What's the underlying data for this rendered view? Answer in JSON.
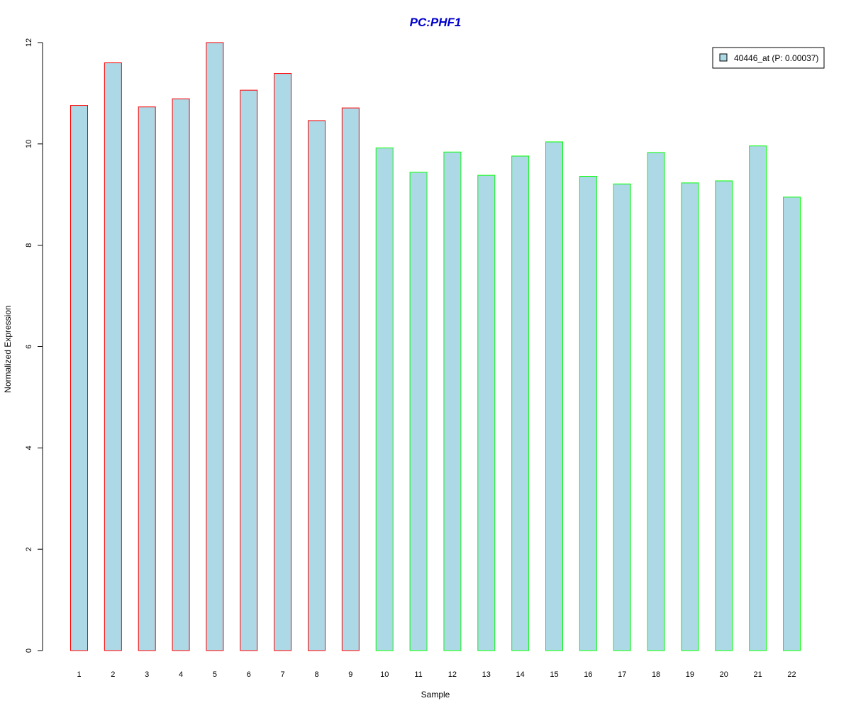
{
  "chart_data": {
    "type": "bar",
    "title": "PC:PHF1",
    "xlabel": "Sample",
    "ylabel": "Normalized Expression",
    "ylim": [
      0,
      12
    ],
    "yticks": [
      "0",
      "2",
      "4",
      "6",
      "8",
      "10",
      "12"
    ],
    "categories": [
      "1",
      "2",
      "3",
      "4",
      "5",
      "6",
      "7",
      "8",
      "9",
      "10",
      "11",
      "12",
      "13",
      "14",
      "15",
      "16",
      "17",
      "18",
      "19",
      "20",
      "21",
      "22"
    ],
    "series": [
      {
        "name": "40446_at (P: 0.00037)",
        "values": [
          10.76,
          11.6,
          10.73,
          10.89,
          12.0,
          11.06,
          11.39,
          10.46,
          10.71,
          9.92,
          9.44,
          9.84,
          9.38,
          9.76,
          10.04,
          9.36,
          9.21,
          9.83,
          9.23,
          9.27,
          9.96,
          8.95
        ],
        "fill_color": "#add8e6"
      }
    ],
    "group_border_colors": [
      "#ff0000",
      "#ff0000",
      "#ff0000",
      "#ff0000",
      "#ff0000",
      "#ff0000",
      "#ff0000",
      "#ff0000",
      "#ff0000",
      "#00ff00",
      "#00ff00",
      "#00ff00",
      "#00ff00",
      "#00ff00",
      "#00ff00",
      "#00ff00",
      "#00ff00",
      "#00ff00",
      "#00ff00",
      "#00ff00",
      "#00ff00",
      "#00ff00"
    ],
    "title_color": "#0000cc",
    "legend_position": "top-right",
    "grid": false
  }
}
